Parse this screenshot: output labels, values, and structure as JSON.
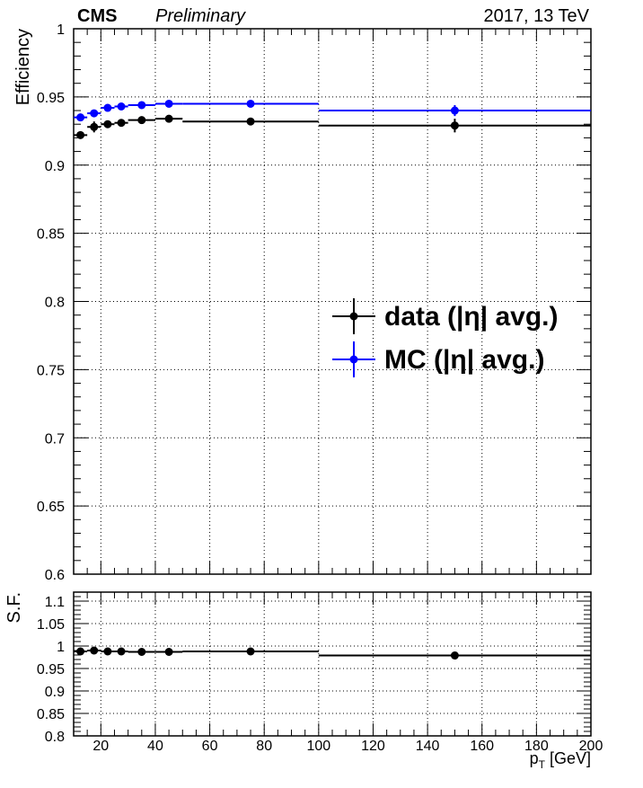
{
  "header": {
    "experiment": "CMS",
    "status": "Preliminary",
    "energy": "2017, 13 TeV"
  },
  "chart_data": [
    {
      "type": "scatter",
      "panel": "efficiency",
      "xlabel": "p_T [GeV]",
      "ylabel": "Efficiency",
      "xlim": [
        10,
        200
      ],
      "ylim": [
        0.6,
        1.0
      ],
      "yticks": [
        "0.6",
        "0.65",
        "0.7",
        "0.75",
        "0.8",
        "0.85",
        "0.9",
        "0.95",
        "1"
      ],
      "grid": true,
      "legend_position": "center-right",
      "series": [
        {
          "name": "data (|η| avg.)",
          "color": "#000000",
          "x": [
            12.5,
            17.5,
            22.5,
            27.5,
            35,
            45,
            75,
            150
          ],
          "x_low": [
            10,
            15,
            20,
            25,
            30,
            40,
            50,
            100
          ],
          "x_high": [
            15,
            20,
            25,
            30,
            40,
            50,
            100,
            200
          ],
          "y": [
            0.922,
            0.928,
            0.93,
            0.931,
            0.933,
            0.934,
            0.932,
            0.929
          ],
          "y_err": [
            0.002,
            0.004,
            0.002,
            0.002,
            0.002,
            0.002,
            0.002,
            0.005
          ]
        },
        {
          "name": "MC (|η| avg.)",
          "color": "#0000ff",
          "x": [
            12.5,
            17.5,
            22.5,
            27.5,
            35,
            45,
            75,
            150
          ],
          "x_low": [
            10,
            15,
            20,
            25,
            30,
            40,
            50,
            100
          ],
          "x_high": [
            15,
            20,
            25,
            30,
            40,
            50,
            100,
            200
          ],
          "y": [
            0.935,
            0.938,
            0.942,
            0.943,
            0.944,
            0.945,
            0.945,
            0.94
          ],
          "y_err": [
            0.001,
            0.002,
            0.002,
            0.002,
            0.002,
            0.002,
            0.002,
            0.004
          ]
        }
      ]
    },
    {
      "type": "scatter",
      "panel": "scale-factor",
      "xlabel": "p_T [GeV]",
      "ylabel": "S.F.",
      "xlim": [
        10,
        200
      ],
      "ylim": [
        0.8,
        1.12
      ],
      "xticks": [
        "20",
        "40",
        "60",
        "80",
        "100",
        "120",
        "140",
        "160",
        "180",
        "200"
      ],
      "yticks": [
        "0.8",
        "0.85",
        "0.9",
        "0.95",
        "1",
        "1.05",
        "1.1"
      ],
      "grid": true,
      "series": [
        {
          "color": "#000000",
          "x": [
            12.5,
            17.5,
            22.5,
            27.5,
            35,
            45,
            75,
            150
          ],
          "x_low": [
            10,
            15,
            20,
            25,
            30,
            40,
            50,
            100
          ],
          "x_high": [
            15,
            20,
            25,
            30,
            40,
            50,
            100,
            200
          ],
          "y": [
            0.988,
            0.99,
            0.988,
            0.988,
            0.987,
            0.987,
            0.988,
            0.979
          ],
          "y_err": [
            0.002,
            0.003,
            0.002,
            0.002,
            0.002,
            0.002,
            0.002,
            0.004
          ]
        }
      ]
    }
  ]
}
